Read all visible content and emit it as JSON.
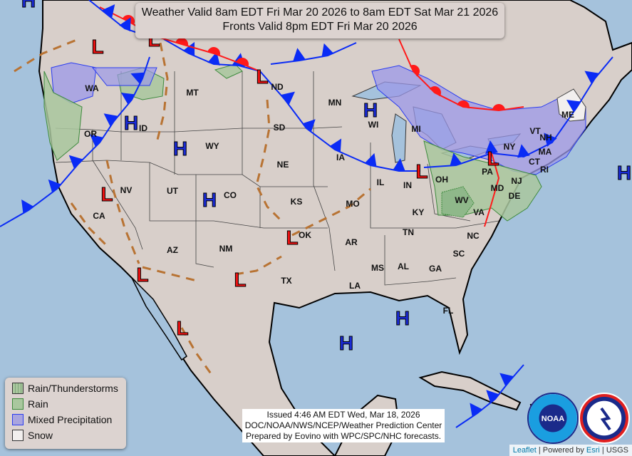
{
  "title": {
    "line1": "Weather Valid 8am EDT Fri Mar 20 2026 to 8am EDT Sat Mar 21 2026",
    "line2": "Fronts Valid 8pm EDT Fri Mar 20 2026"
  },
  "legend": [
    {
      "label": "Rain/Thunderstorms",
      "color": "#a9c79e"
    },
    {
      "label": "Rain",
      "color": "#a9c79e"
    },
    {
      "label": "Mixed Precipitation",
      "color": "#a9a5df"
    },
    {
      "label": "Snow",
      "color": "#f2efee"
    }
  ],
  "issued": {
    "line1": "Issued  4:46 AM EDT Wed, Mar 18, 2026",
    "line2": "DOC/NOAA/NWS/NCEP/Weather Prediction Center",
    "line3": "Prepared by Eovino with WPC/SPC/NHC forecasts."
  },
  "attribution": {
    "leaflet": "Leaflet",
    "sep1": " | Powered by ",
    "esri": "Esri",
    "sep2": " | USGS"
  },
  "logos": {
    "noaa": "NOAA",
    "nws": "NATIONAL WEATHER SERVICE"
  },
  "colors": {
    "ocean": "#a5c2dc",
    "land": "#d8cfca",
    "cold_front": "#0a2bf5",
    "warm_front": "#ff1a1a",
    "trough": "#b87333",
    "high": "#1a2bd6",
    "low": "#ee1111"
  },
  "states": [
    "WA",
    "OR",
    "ID",
    "MT",
    "WY",
    "CA",
    "NV",
    "UT",
    "CO",
    "AZ",
    "NM",
    "ND",
    "SD",
    "NE",
    "KS",
    "OK",
    "TX",
    "MN",
    "IA",
    "MO",
    "AR",
    "LA",
    "WI",
    "IL",
    "MI",
    "IN",
    "OH",
    "KY",
    "TN",
    "MS",
    "AL",
    "GA",
    "FL",
    "SC",
    "NC",
    "VA",
    "WV",
    "PA",
    "NY",
    "MD",
    "DE",
    "NJ",
    "CT",
    "RI",
    "MA",
    "VT",
    "NH",
    "ME"
  ],
  "pressure_centers": [
    "L",
    "L",
    "H",
    "H",
    "H",
    "H",
    "L",
    "L",
    "L",
    "L",
    "L",
    "L",
    "H",
    "L",
    "L",
    "H",
    "H",
    "H"
  ]
}
